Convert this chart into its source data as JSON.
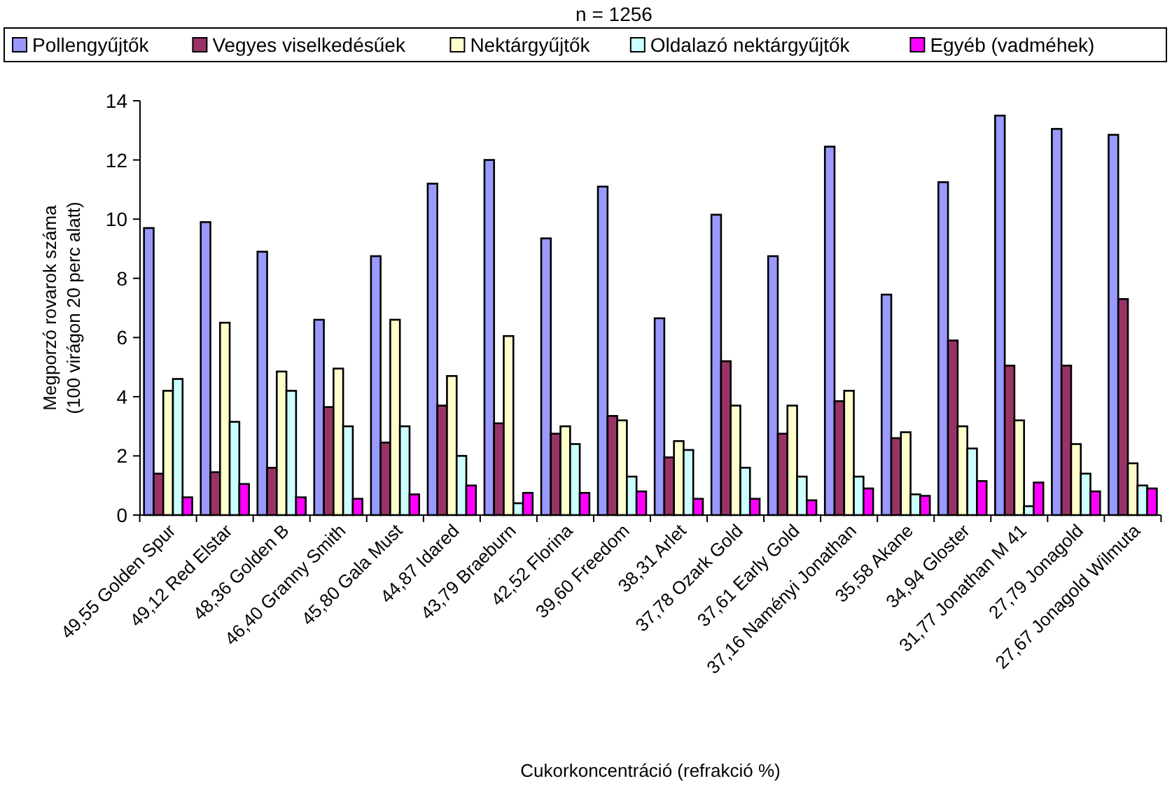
{
  "chart_data": {
    "type": "bar",
    "title": "n = 1256",
    "xlabel": "Cukorkoncentráció (refrakció %)",
    "ylabel": "Megporzó rovarok száma\n(100 virágon 20 perc alatt)",
    "categories": [
      "49,55 Golden Spur",
      "49,12 Red Elstar",
      "48,36 Golden B",
      "46,40 Granny Smith",
      "45,80 Gala Must",
      "44,87 Idared",
      "43,79 Braeburn",
      "42,52 Florina",
      "39,60 Freedom",
      "38,31 Arlet",
      "37,78 Ozark Gold",
      "37,61 Early Gold",
      "37,16 Naményi Jonathan",
      "35,58 Akane",
      "34,94 Gloster",
      "31,77 Jonathan M 41",
      "27,79 Jonagold",
      "27,67 Jonagold Wilmuta"
    ],
    "series": [
      {
        "name": "Pollengyűjtők",
        "color": "#9999ff",
        "values": [
          9.7,
          9.9,
          8.9,
          6.6,
          8.75,
          11.2,
          12.0,
          9.35,
          11.1,
          6.65,
          10.15,
          8.75,
          12.45,
          7.45,
          11.25,
          13.5,
          13.05,
          12.85
        ]
      },
      {
        "name": "Vegyes viselkedésűek",
        "color": "#993366",
        "values": [
          1.4,
          1.45,
          1.6,
          3.65,
          2.45,
          3.7,
          3.1,
          2.75,
          3.35,
          1.95,
          5.2,
          2.75,
          3.85,
          2.6,
          5.9,
          5.05,
          5.05,
          7.3
        ]
      },
      {
        "name": "Nektárgyűjtők",
        "color": "#ffffcc",
        "values": [
          4.2,
          6.5,
          4.85,
          4.95,
          6.6,
          4.7,
          6.05,
          3.0,
          3.2,
          2.5,
          3.7,
          3.7,
          4.2,
          2.8,
          3.0,
          3.2,
          2.4,
          1.75
        ]
      },
      {
        "name": "Oldalazó nektárgyűjtők",
        "color": "#ccffff",
        "values": [
          4.6,
          3.15,
          4.2,
          3.0,
          3.0,
          2.0,
          0.4,
          2.4,
          1.3,
          2.2,
          1.6,
          1.3,
          1.3,
          0.7,
          2.25,
          0.3,
          1.4,
          1.0
        ]
      },
      {
        "name": "Egyéb (vadméhek)",
        "color": "#ff00ff",
        "values": [
          0.6,
          1.05,
          0.6,
          0.55,
          0.7,
          1.0,
          0.75,
          0.75,
          0.8,
          0.55,
          0.55,
          0.5,
          0.9,
          0.65,
          1.15,
          1.1,
          0.8,
          0.9
        ]
      }
    ],
    "ylim": [
      0,
      14
    ],
    "yticks": [
      0,
      2,
      4,
      6,
      8,
      10,
      12,
      14
    ],
    "legend": "top",
    "grid": false
  }
}
